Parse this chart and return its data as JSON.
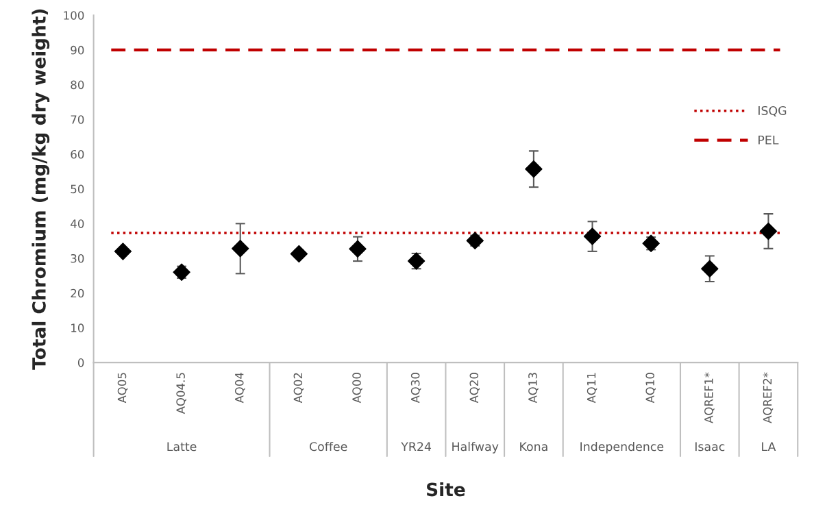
{
  "chart_data": {
    "type": "scatter",
    "xlabel": "Site",
    "ylabel": "Total Chromium (mg/kg dry weight)",
    "categories": [
      "AQ05",
      "AQ04.5",
      "AQ04",
      "AQ02",
      "AQ00",
      "AQ30",
      "AQ20",
      "AQ13",
      "AQ11",
      "AQ10",
      "AQREF1*",
      "AQREF2*"
    ],
    "series": [
      {
        "color": "#000000",
        "values": [
          32.0,
          26.0,
          32.8,
          31.3,
          32.7,
          29.2,
          35.1,
          55.7,
          36.3,
          34.3,
          27.0,
          37.8
        ],
        "errors": [
          null,
          1.7,
          7.2,
          1.1,
          3.5,
          2.2,
          1.5,
          5.2,
          4.3,
          1.8,
          3.7,
          5.0
        ]
      }
    ],
    "marker": "diamond",
    "ylim": [
      0,
      100
    ],
    "yticks": [
      0,
      10,
      20,
      30,
      40,
      50,
      60,
      70,
      80,
      90,
      100
    ],
    "ref_lines": [
      {
        "axis": "y",
        "value": 37.3,
        "label": "ISQG",
        "color": "#c00000",
        "line_style": "dotted"
      },
      {
        "axis": "y",
        "value": 90,
        "label": "PEL",
        "color": "#c00000",
        "line_style": "dashed"
      }
    ],
    "legend": "right",
    "annotations": [
      "Latte",
      "Coffee",
      "YR24",
      "Halfway",
      "Kona",
      "Independence",
      "Isaac",
      "LA"
    ]
  }
}
